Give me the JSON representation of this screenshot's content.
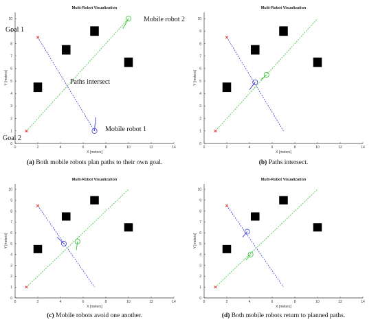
{
  "chart_data": [
    {
      "type": "scatter",
      "title": "Multi-Robot Visualization",
      "xlabel": "X [meters]",
      "ylabel": "Y [meters]",
      "xlim": [
        0,
        14
      ],
      "ylim": [
        0,
        10.5
      ],
      "xticks": [
        0,
        2,
        4,
        6,
        8,
        10,
        12,
        14
      ],
      "yticks": [
        0,
        1,
        2,
        3,
        4,
        5,
        6,
        7,
        8,
        9,
        10
      ],
      "grid": false,
      "obstacles": [
        [
          2,
          4.5
        ],
        [
          4.5,
          7.5
        ],
        [
          7,
          9
        ],
        [
          10,
          6.5
        ]
      ],
      "series": [
        {
          "color": "#3a3ad8",
          "path": [
            [
              2,
              8.5
            ],
            [
              7,
              1
            ]
          ],
          "robot": [
            7,
            1
          ],
          "heading": [
            7.1,
            2.1
          ],
          "goal": [
            2,
            8.5
          ]
        },
        {
          "color": "#2fc42f",
          "path": [
            [
              1,
              1
            ],
            [
              10,
              10
            ]
          ],
          "robot": [
            10,
            10
          ],
          "heading": [
            9.5,
            9.2
          ],
          "goal": [
            1,
            1
          ]
        }
      ],
      "caption_label": "(a)",
      "caption_text": " Both mobile robots plan paths to their own goal.",
      "annotations": {
        "goal1": "Goal 1",
        "goal2": "Goal 2",
        "robot1": "Mobile robot 1",
        "robot2": "Mobile robot 2",
        "intersect": "Paths intersect"
      }
    },
    {
      "type": "scatter",
      "title": "Multi-Robot Visualization",
      "xlabel": "X [meters]",
      "ylabel": "Y [meters]",
      "xlim": [
        0,
        14
      ],
      "ylim": [
        0,
        10.5
      ],
      "xticks": [
        0,
        2,
        4,
        6,
        8,
        10,
        12,
        14
      ],
      "yticks": [
        0,
        1,
        2,
        3,
        4,
        5,
        6,
        7,
        8,
        9,
        10
      ],
      "grid": false,
      "obstacles": [
        [
          2,
          4.5
        ],
        [
          4.5,
          7.5
        ],
        [
          7,
          9
        ],
        [
          10,
          6.5
        ]
      ],
      "series": [
        {
          "color": "#3a3ad8",
          "path": [
            [
              2,
              8.5
            ],
            [
              7,
              1
            ]
          ],
          "robot": [
            4.5,
            4.9
          ],
          "heading": [
            4.0,
            4.3
          ],
          "goal": [
            2,
            8.5
          ]
        },
        {
          "color": "#2fc42f",
          "path": [
            [
              1,
              1
            ],
            [
              10,
              10
            ]
          ],
          "robot": [
            5.5,
            5.5
          ],
          "heading": [
            5.0,
            5.1
          ],
          "goal": [
            1,
            1
          ]
        }
      ],
      "caption_label": "(b)",
      "caption_text": " Paths intersect."
    },
    {
      "type": "scatter",
      "title": "Multi-Robot Visualization",
      "xlabel": "X [meters]",
      "ylabel": "Y [meters]",
      "xlim": [
        0,
        14
      ],
      "ylim": [
        0,
        10.5
      ],
      "xticks": [
        0,
        2,
        4,
        6,
        8,
        10,
        12,
        14
      ],
      "yticks": [
        0,
        1,
        2,
        3,
        4,
        5,
        6,
        7,
        8,
        9,
        10
      ],
      "grid": false,
      "obstacles": [
        [
          2,
          4.5
        ],
        [
          4.5,
          7.5
        ],
        [
          7,
          9
        ],
        [
          10,
          6.5
        ]
      ],
      "series": [
        {
          "color": "#3a3ad8",
          "path": [
            [
              2,
              8.5
            ],
            [
              7,
              1
            ]
          ],
          "robot": [
            4.3,
            5.0
          ],
          "heading": [
            3.7,
            5.6
          ],
          "goal": [
            2,
            8.5
          ]
        },
        {
          "color": "#2fc42f",
          "path": [
            [
              1,
              1
            ],
            [
              10,
              10
            ]
          ],
          "robot": [
            5.5,
            5.2
          ],
          "heading": [
            5.4,
            4.4
          ],
          "goal": [
            1,
            1
          ]
        }
      ],
      "caption_label": "(c)",
      "caption_text": " Mobile robots avoid one another."
    },
    {
      "type": "scatter",
      "title": "Multi-Robot Visualization",
      "xlabel": "X [meters]",
      "ylabel": "Y [meters]",
      "xlim": [
        0,
        14
      ],
      "ylim": [
        0,
        10.5
      ],
      "xticks": [
        0,
        2,
        4,
        6,
        8,
        10,
        12,
        14
      ],
      "yticks": [
        0,
        1,
        2,
        3,
        4,
        5,
        6,
        7,
        8,
        9,
        10
      ],
      "grid": false,
      "obstacles": [
        [
          2,
          4.5
        ],
        [
          4.5,
          7.5
        ],
        [
          7,
          9
        ],
        [
          10,
          6.5
        ]
      ],
      "series": [
        {
          "color": "#3a3ad8",
          "path": [
            [
              2,
              8.5
            ],
            [
              7,
              1
            ]
          ],
          "robot": [
            3.8,
            6.1
          ],
          "heading": [
            3.4,
            5.6
          ],
          "goal": [
            2,
            8.5
          ]
        },
        {
          "color": "#2fc42f",
          "path": [
            [
              1,
              1
            ],
            [
              10,
              10
            ]
          ],
          "robot": [
            4.1,
            4.0
          ],
          "heading": [
            3.7,
            3.5
          ],
          "goal": [
            1,
            1
          ]
        }
      ],
      "caption_label": "(d)",
      "caption_text": " Both mobile robots return to planned paths."
    }
  ]
}
